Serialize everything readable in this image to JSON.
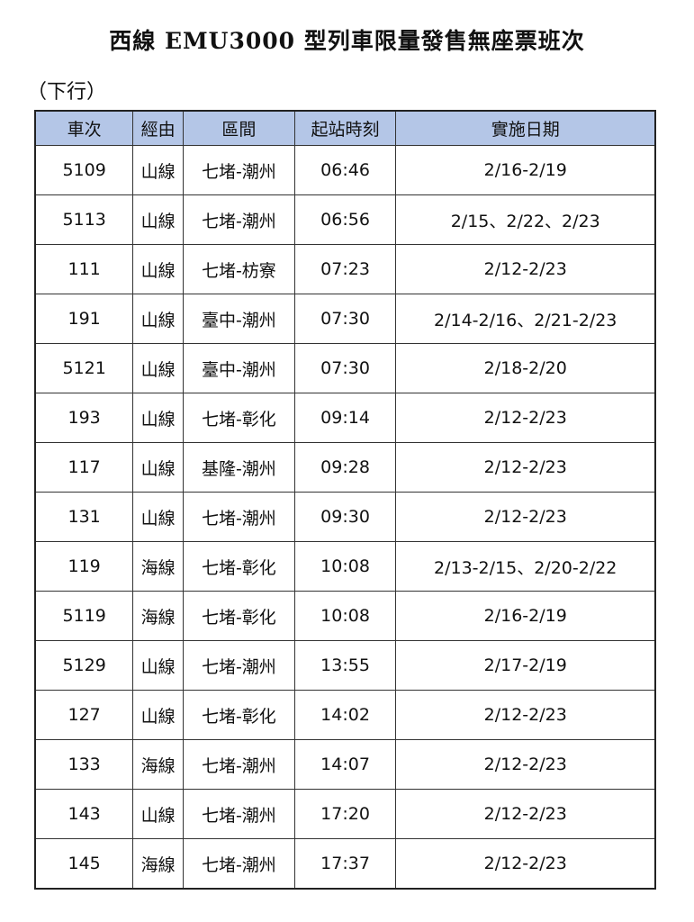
{
  "title": "西線 EMU3000 型列車限量發售無座票班次",
  "subtitle": "（下行）",
  "colors": {
    "header_bg": "#b4c6e7"
  },
  "table": {
    "headers": [
      "車次",
      "經由",
      "區間",
      "起站時刻",
      "實施日期"
    ],
    "rows": [
      [
        "5109",
        "山線",
        "七堵-潮州",
        "06:46",
        "2/16-2/19"
      ],
      [
        "5113",
        "山線",
        "七堵-潮州",
        "06:56",
        "2/15、2/22、2/23"
      ],
      [
        "111",
        "山線",
        "七堵-枋寮",
        "07:23",
        "2/12-2/23"
      ],
      [
        "191",
        "山線",
        "臺中-潮州",
        "07:30",
        "2/14-2/16、2/21-2/23"
      ],
      [
        "5121",
        "山線",
        "臺中-潮州",
        "07:30",
        "2/18-2/20"
      ],
      [
        "193",
        "山線",
        "七堵-彰化",
        "09:14",
        "2/12-2/23"
      ],
      [
        "117",
        "山線",
        "基隆-潮州",
        "09:28",
        "2/12-2/23"
      ],
      [
        "131",
        "山線",
        "七堵-潮州",
        "09:30",
        "2/12-2/23"
      ],
      [
        "119",
        "海線",
        "七堵-彰化",
        "10:08",
        "2/13-2/15、2/20-2/22"
      ],
      [
        "5119",
        "海線",
        "七堵-彰化",
        "10:08",
        "2/16-2/19"
      ],
      [
        "5129",
        "山線",
        "七堵-潮州",
        "13:55",
        "2/17-2/19"
      ],
      [
        "127",
        "山線",
        "七堵-彰化",
        "14:02",
        "2/12-2/23"
      ],
      [
        "133",
        "海線",
        "七堵-潮州",
        "14:07",
        "2/12-2/23"
      ],
      [
        "143",
        "山線",
        "七堵-潮州",
        "17:20",
        "2/12-2/23"
      ],
      [
        "145",
        "海線",
        "七堵-潮州",
        "17:37",
        "2/12-2/23"
      ]
    ]
  }
}
